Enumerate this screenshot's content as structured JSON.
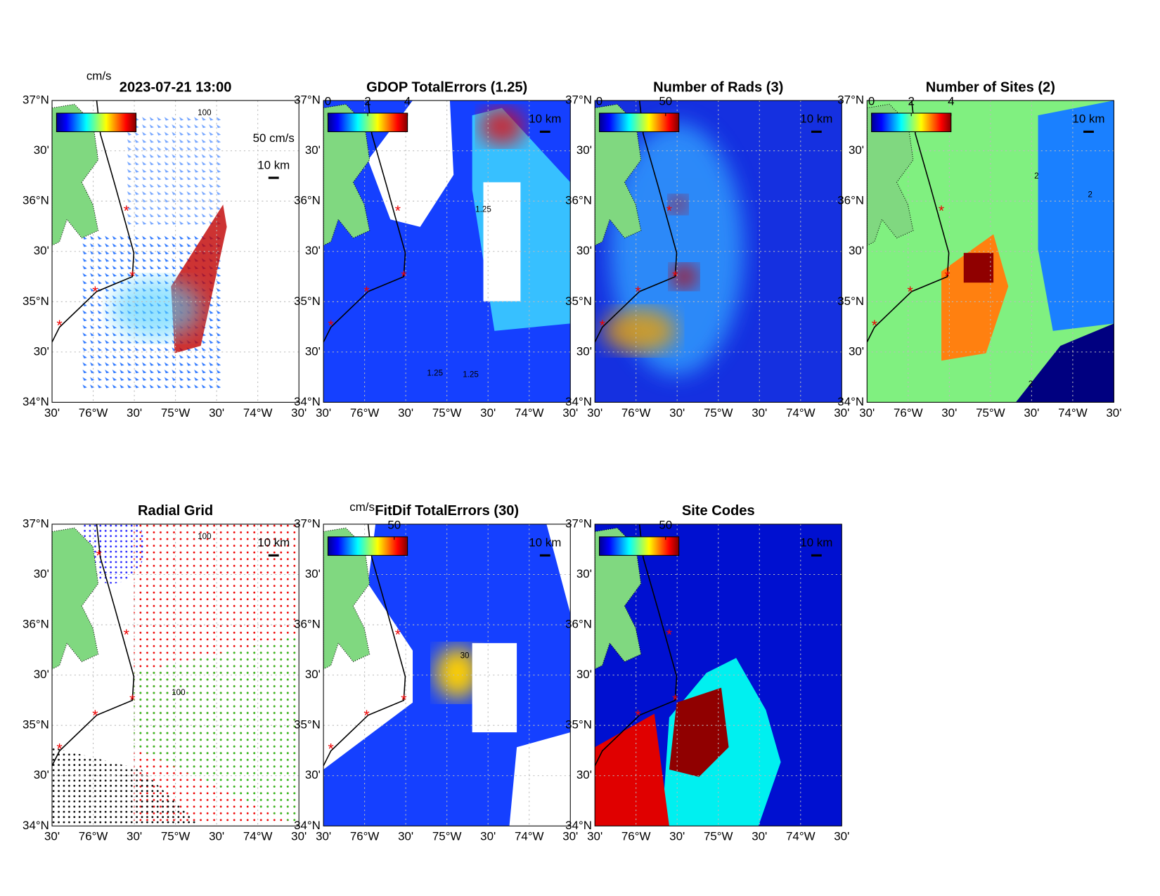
{
  "lat_labels": [
    "37°N",
    "30'",
    "36°N",
    "30'",
    "35°N",
    "30'",
    "34°N"
  ],
  "lon_labels": [
    "30'",
    "76°W",
    "30'",
    "75°W",
    "30'",
    "74°W",
    "30'"
  ],
  "panels": [
    {
      "title": "2023-07-21 13:00",
      "colorbar_unit": "cm/s",
      "scale_arrow": "50 cm/s",
      "scale_bar": "10 km",
      "contour_labels": [
        "100"
      ]
    },
    {
      "title": "GDOP TotalErrors (1.25)",
      "colorbar_ticks": [
        0,
        2,
        4
      ],
      "clim": [
        0,
        4
      ],
      "scale_bar": "10 km",
      "contour_labels": [
        "1.25",
        "1.25",
        "1.25"
      ]
    },
    {
      "title": "Number of Rads (3)",
      "colorbar_ticks": [
        0,
        50
      ],
      "clim": [
        0,
        60
      ],
      "scale_bar": "10 km"
    },
    {
      "title": "Number of Sites (2)",
      "colorbar_ticks": [
        0,
        2,
        4
      ],
      "clim": [
        0,
        4
      ],
      "scale_bar": "10 km",
      "contour_labels": [
        "2",
        "2",
        "2"
      ]
    },
    {
      "title": "Radial Grid",
      "scale_bar": "10 km",
      "contour_labels": [
        "100",
        "100"
      ]
    },
    {
      "title": "FitDif TotalErrors (30)",
      "colorbar_unit": "cm/s",
      "colorbar_ticks": [
        50
      ],
      "clim": [
        0,
        60
      ],
      "scale_bar": "10 km",
      "contour_labels": [
        "30"
      ]
    },
    {
      "title": "Site Codes",
      "colorbar_ticks": [
        50
      ],
      "clim": [
        0,
        60
      ],
      "scale_bar": "10 km"
    }
  ]
}
